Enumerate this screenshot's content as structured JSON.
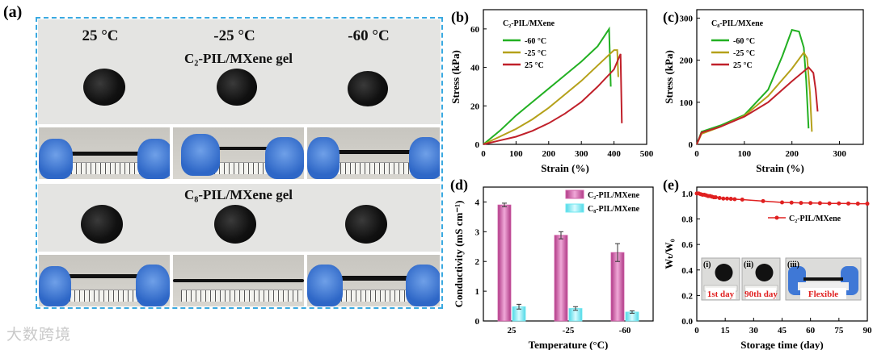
{
  "panel_a": {
    "label": "(a)",
    "temps": [
      "25 °C",
      "-25 °C",
      "-60 °C"
    ],
    "gel_top_title": "C₂-PIL/MXene gel",
    "gel_bottom_title": "C₈-PIL/MXene gel"
  },
  "chart_data": [
    {
      "id": "b",
      "label": "(b)",
      "type": "line",
      "legend_title": "C₂-PIL/MXene",
      "xlabel": "Strain (%)",
      "ylabel": "Stress (kPa)",
      "xlim": [
        0,
        500
      ],
      "ylim": [
        0,
        70
      ],
      "xticks": [
        0,
        100,
        200,
        300,
        400,
        500
      ],
      "yticks": [
        0,
        20,
        40,
        60
      ],
      "series": [
        {
          "name": "-60 °C",
          "color": "#22b022",
          "x": [
            0,
            50,
            100,
            150,
            200,
            250,
            300,
            350,
            385,
            390
          ],
          "y": [
            0,
            7,
            15,
            22,
            29,
            36,
            43,
            51,
            60,
            30
          ]
        },
        {
          "name": "-25 °C",
          "color": "#b5a11a",
          "x": [
            0,
            50,
            100,
            150,
            200,
            250,
            300,
            350,
            400,
            410,
            413
          ],
          "y": [
            0,
            4,
            8,
            13,
            19,
            26,
            33,
            41,
            49,
            49,
            35
          ]
        },
        {
          "name": "25 °C",
          "color": "#c0202a",
          "x": [
            0,
            50,
            100,
            150,
            200,
            250,
            300,
            350,
            400,
            420,
            424
          ],
          "y": [
            0,
            2,
            4,
            7,
            11,
            16,
            22,
            30,
            39,
            47,
            11
          ]
        }
      ]
    },
    {
      "id": "c",
      "label": "(c)",
      "type": "line",
      "legend_title": "C₈-PIL/MXene",
      "xlabel": "Strain (%)",
      "ylabel": "Stress (kPa)",
      "xlim": [
        0,
        350
      ],
      "ylim": [
        0,
        320
      ],
      "xticks": [
        0,
        100,
        200,
        300
      ],
      "yticks": [
        0,
        100,
        200,
        300
      ],
      "series": [
        {
          "name": "-60 °C",
          "color": "#22b022",
          "x": [
            0,
            10,
            50,
            100,
            150,
            180,
            200,
            215,
            225,
            230,
            235
          ],
          "y": [
            0,
            30,
            45,
            70,
            130,
            210,
            272,
            268,
            230,
            150,
            38
          ]
        },
        {
          "name": "-25 °C",
          "color": "#b5a11a",
          "x": [
            0,
            10,
            50,
            100,
            150,
            200,
            225,
            232,
            238,
            242
          ],
          "y": [
            0,
            25,
            42,
            68,
            115,
            180,
            218,
            205,
            120,
            30
          ]
        },
        {
          "name": "25 °C",
          "color": "#c0202a",
          "x": [
            0,
            10,
            50,
            100,
            150,
            200,
            235,
            245,
            250,
            254
          ],
          "y": [
            0,
            28,
            42,
            66,
            100,
            150,
            183,
            170,
            130,
            78
          ]
        }
      ]
    },
    {
      "id": "d",
      "label": "(d)",
      "type": "bar",
      "categories": [
        "25",
        "-25",
        "-60"
      ],
      "xlabel": "Temperature (°C)",
      "ylabel": "Conductivity (mS cm⁻¹)",
      "ylim": [
        0,
        4.5
      ],
      "yticks": [
        0,
        1,
        2,
        3,
        4
      ],
      "series": [
        {
          "name": "C₂-PIL/MXene",
          "color": "#d060a8",
          "values": [
            3.9,
            2.88,
            2.3
          ],
          "errors": [
            0.06,
            0.12,
            0.3
          ]
        },
        {
          "name": "C₈-PIL/MXene",
          "color": "#6fe8f0",
          "values": [
            0.48,
            0.42,
            0.3
          ],
          "errors": [
            0.08,
            0.06,
            0.04
          ]
        }
      ]
    },
    {
      "id": "e",
      "label": "(e)",
      "type": "line",
      "xlabel": "Storage time (day)",
      "ylabel": "Wₜ/W₀",
      "xlim": [
        0,
        90
      ],
      "ylim": [
        0,
        1.05
      ],
      "xticks": [
        0,
        15,
        30,
        45,
        60,
        75,
        90
      ],
      "yticks": [
        0.0,
        0.2,
        0.4,
        0.6,
        0.8,
        1.0
      ],
      "series": [
        {
          "name": "C₂-PIL/MXene",
          "color": "#e02020",
          "x": [
            0,
            1,
            2,
            3,
            4,
            5,
            6,
            7,
            8,
            9,
            10,
            12,
            14,
            16,
            18,
            20,
            24,
            35,
            45,
            50,
            55,
            60,
            65,
            70,
            75,
            80,
            85,
            90
          ],
          "y": [
            1.0,
            1.0,
            0.995,
            0.99,
            0.99,
            0.985,
            0.98,
            0.98,
            0.975,
            0.97,
            0.97,
            0.965,
            0.96,
            0.96,
            0.958,
            0.955,
            0.952,
            0.94,
            0.93,
            0.928,
            0.926,
            0.925,
            0.924,
            0.922,
            0.922,
            0.921,
            0.92,
            0.92
          ]
        }
      ],
      "insets": [
        "(i)",
        "(ii)",
        "(iii)"
      ],
      "inset_captions": [
        "1st day",
        "90th day",
        "Flexible"
      ]
    }
  ],
  "watermark": "大数跨境"
}
